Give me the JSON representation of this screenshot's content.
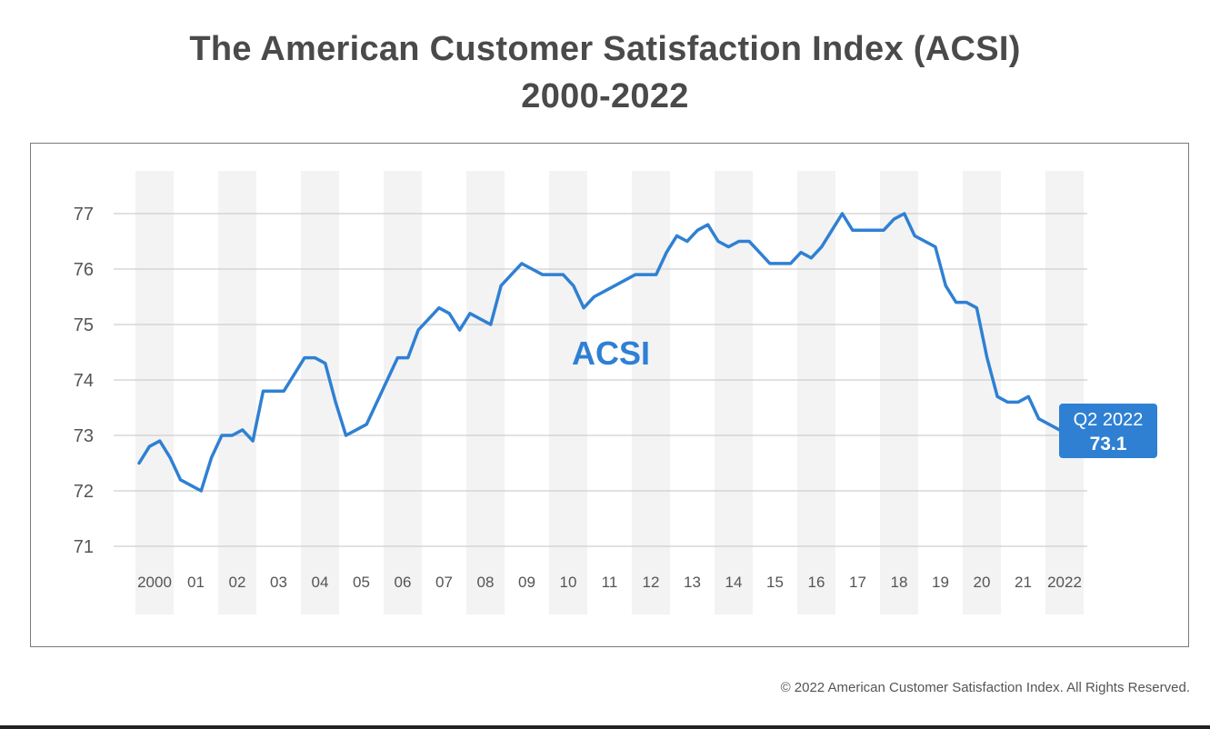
{
  "title": {
    "line1": "The American Customer Satisfaction Index (ACSI)",
    "line2": "2000-2022"
  },
  "copyright": "© 2022 American Customer Satisfaction Index. All Rights Reserved.",
  "colors": {
    "line": "#2f80d3",
    "callout_bg": "#2f80d3",
    "callout_text": "#ffffff",
    "grid": "#cfcfcf",
    "band": "#f3f3f3",
    "axis_text": "#555555",
    "title_text": "#4a4a4a"
  },
  "chart_data": {
    "type": "line",
    "title": "The American Customer Satisfaction Index (ACSI) 2000-2022",
    "xlabel": "",
    "ylabel": "",
    "ylim": [
      71,
      77
    ],
    "yticks": [
      71,
      72,
      73,
      74,
      75,
      76,
      77
    ],
    "ytick_labels": [
      "71",
      "72",
      "73",
      "74",
      "75",
      "76",
      "77"
    ],
    "xtick_labels": [
      "2000",
      "01",
      "02",
      "03",
      "04",
      "05",
      "06",
      "07",
      "08",
      "09",
      "10",
      "11",
      "12",
      "13",
      "14",
      "15",
      "16",
      "17",
      "18",
      "19",
      "20",
      "21",
      "2022"
    ],
    "grid": true,
    "alternating_year_bands": true,
    "series": [
      {
        "name": "ACSI",
        "x": [
          2000.0,
          2000.25,
          2000.5,
          2000.75,
          2001.0,
          2001.25,
          2001.5,
          2001.75,
          2002.0,
          2002.25,
          2002.5,
          2002.75,
          2003.0,
          2003.25,
          2003.5,
          2003.75,
          2004.0,
          2004.25,
          2004.5,
          2004.75,
          2005.0,
          2005.25,
          2005.5,
          2005.75,
          2006.0,
          2006.25,
          2006.5,
          2006.75,
          2007.0,
          2007.25,
          2007.5,
          2007.75,
          2008.0,
          2008.25,
          2008.5,
          2008.75,
          2009.0,
          2009.25,
          2009.5,
          2009.75,
          2010.0,
          2010.25,
          2010.5,
          2010.75,
          2011.0,
          2011.25,
          2011.5,
          2011.75,
          2012.0,
          2012.25,
          2012.5,
          2012.75,
          2013.0,
          2013.25,
          2013.5,
          2013.75,
          2014.0,
          2014.25,
          2014.5,
          2014.75,
          2015.0,
          2015.25,
          2015.5,
          2015.75,
          2016.0,
          2016.25,
          2016.5,
          2016.75,
          2017.0,
          2017.25,
          2017.5,
          2017.75,
          2018.0,
          2018.25,
          2018.5,
          2018.75,
          2019.0,
          2019.25,
          2019.5,
          2019.75,
          2020.0,
          2020.25,
          2020.5,
          2020.75,
          2021.0,
          2021.25,
          2021.5,
          2021.75,
          2022.0,
          2022.25
        ],
        "values": [
          72.5,
          72.8,
          72.9,
          72.6,
          72.2,
          72.1,
          72.0,
          72.6,
          73.0,
          73.0,
          73.1,
          72.9,
          73.8,
          73.8,
          73.8,
          74.1,
          74.4,
          74.4,
          74.3,
          73.6,
          73.0,
          73.1,
          73.2,
          73.6,
          74.0,
          74.4,
          74.4,
          74.9,
          75.1,
          75.3,
          75.2,
          74.9,
          75.2,
          75.1,
          75.0,
          75.7,
          75.9,
          76.1,
          76.0,
          75.9,
          75.9,
          75.9,
          75.7,
          75.3,
          75.5,
          75.6,
          75.7,
          75.8,
          75.9,
          75.9,
          75.9,
          76.3,
          76.6,
          76.5,
          76.7,
          76.8,
          76.5,
          76.4,
          76.5,
          76.5,
          76.3,
          76.1,
          76.1,
          76.1,
          76.3,
          76.2,
          76.4,
          76.7,
          77.0,
          76.7,
          76.7,
          76.7,
          76.7,
          76.9,
          77.0,
          76.6,
          76.5,
          76.4,
          75.7,
          75.4,
          75.4,
          75.3,
          74.4,
          73.7,
          73.6,
          73.6,
          73.7,
          73.3,
          73.2,
          73.1
        ]
      }
    ],
    "series_label": "ACSI",
    "callout": {
      "line1": "Q2 2022",
      "line2": "73.1"
    }
  }
}
